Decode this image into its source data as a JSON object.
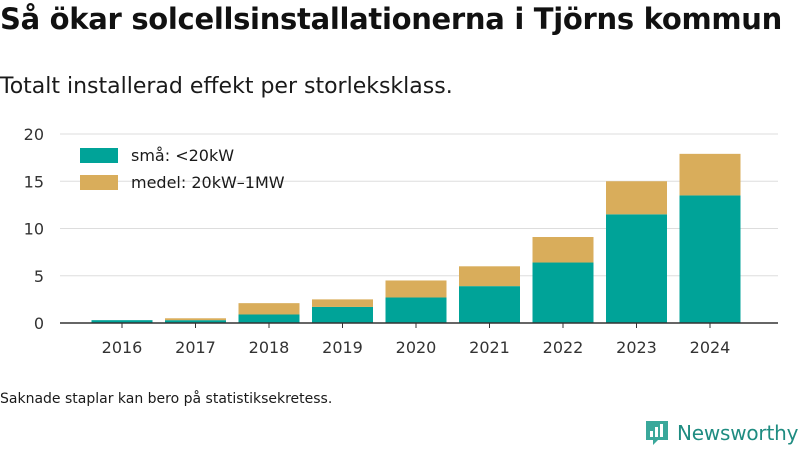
{
  "header": {
    "title": "Så ökar solcellsinstallationerna i Tjörns kommun",
    "subtitle": "Totalt installerad effekt per storleksklass."
  },
  "footnote": "Saknade staplar kan bero på statistiksekretess.",
  "brand": {
    "name": "Newsworthy",
    "icon": "newsworthy-logo-icon"
  },
  "colors": {
    "small": "#00a398",
    "medium": "#d9ad5b",
    "grid": "#dddddd",
    "axis": "#333333",
    "brand": "#1f8c81"
  },
  "chart_data": {
    "type": "bar",
    "stacked": true,
    "categories": [
      "2016",
      "2017",
      "2018",
      "2019",
      "2020",
      "2021",
      "2022",
      "2023",
      "2024"
    ],
    "series": [
      {
        "name": "små: <20kW",
        "values": [
          0.3,
          0.3,
          0.9,
          1.7,
          2.7,
          3.9,
          6.4,
          11.5,
          13.5
        ]
      },
      {
        "name": "medel: 20kW–1MW",
        "values": [
          0.0,
          0.2,
          1.2,
          0.8,
          1.8,
          2.1,
          2.7,
          3.5,
          4.4
        ]
      }
    ],
    "yticks": [
      0,
      5,
      10,
      15,
      20
    ],
    "ylim": [
      0,
      20
    ],
    "grid": true,
    "legend": "top-left"
  }
}
